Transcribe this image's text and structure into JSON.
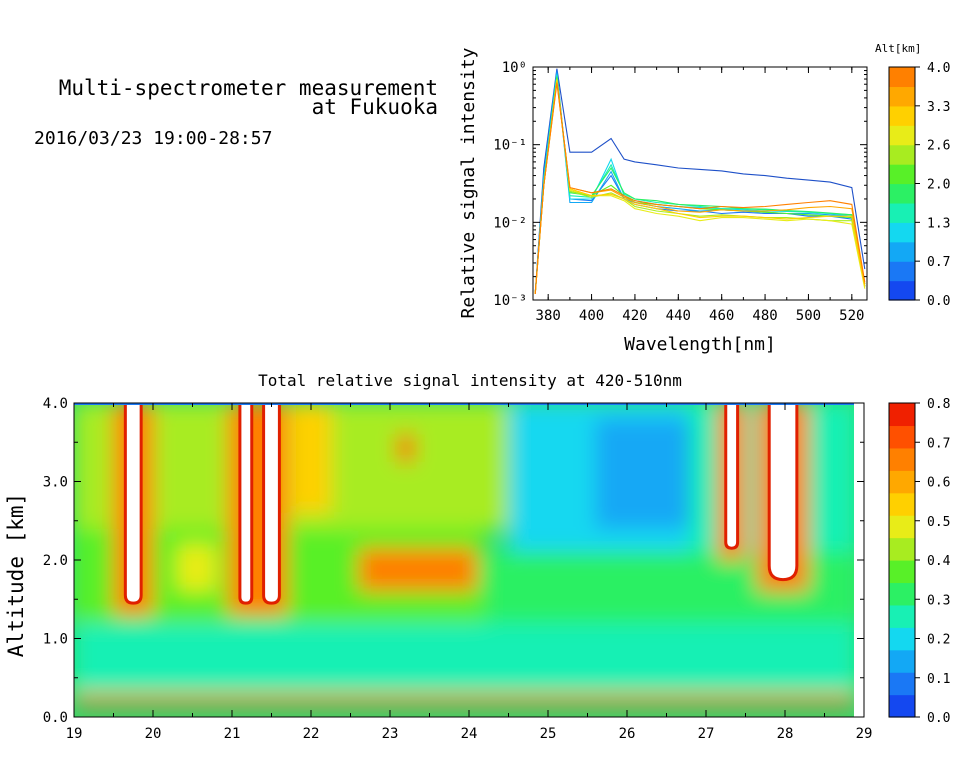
{
  "header": {
    "title_line1": "Multi-spectrometer measurement",
    "title_line2": "at Fukuoka",
    "datetime": "2016/03/23 19:00-28:57"
  },
  "chart_data": [
    {
      "type": "line",
      "xlabel": "Wavelength[nm]",
      "ylabel": "Relative signal intensity",
      "xlim": [
        373,
        527
      ],
      "ylim": [
        0.001,
        1
      ],
      "yscale": "log",
      "x_ticks": [
        "380",
        "400",
        "420",
        "440",
        "460",
        "480",
        "500",
        "520"
      ],
      "y_ticks": [
        "10⁰",
        "10⁻¹",
        "10⁻²",
        "10⁻³"
      ],
      "grid": false,
      "colorbar": {
        "label": "Alt[km]",
        "min": 0.0,
        "max": 4.0,
        "tick_labels": [
          "0.0",
          "0.7",
          "1.3",
          "2.0",
          "2.6",
          "3.3",
          "4.0"
        ],
        "colors": [
          "#1448f0",
          "#1a78f5",
          "#13a8f5",
          "#14d8f0",
          "#18f0b4",
          "#2cf064",
          "#58f028",
          "#a8ec20",
          "#e8ec18",
          "#ffd000",
          "#ffa800",
          "#ff8000"
        ]
      },
      "x": [
        374,
        378,
        384,
        390,
        400,
        409,
        415,
        420,
        430,
        440,
        450,
        460,
        470,
        480,
        490,
        500,
        510,
        520,
        526
      ],
      "series": [
        {
          "color": "#1e50c8",
          "values": [
            0.0012,
            0.05,
            0.95,
            0.08,
            0.08,
            0.12,
            0.065,
            0.06,
            0.055,
            0.05,
            0.048,
            0.046,
            0.042,
            0.04,
            0.037,
            0.035,
            0.033,
            0.028,
            0.0025
          ]
        },
        {
          "color": "#1a78f5",
          "values": [
            0.0012,
            0.04,
            0.9,
            0.02,
            0.019,
            0.04,
            0.02,
            0.017,
            0.015,
            0.014,
            0.014,
            0.013,
            0.0135,
            0.013,
            0.013,
            0.012,
            0.012,
            0.011,
            0.0015
          ]
        },
        {
          "color": "#13a8f5",
          "values": [
            0.0012,
            0.04,
            0.85,
            0.018,
            0.018,
            0.045,
            0.02,
            0.018,
            0.016,
            0.015,
            0.014,
            0.0145,
            0.014,
            0.0135,
            0.013,
            0.013,
            0.0125,
            0.012,
            0.0015
          ]
        },
        {
          "color": "#14d8f0",
          "values": [
            0.0012,
            0.035,
            0.8,
            0.02,
            0.02,
            0.065,
            0.022,
            0.019,
            0.017,
            0.016,
            0.0155,
            0.015,
            0.0145,
            0.014,
            0.0138,
            0.0135,
            0.013,
            0.012,
            0.0015
          ]
        },
        {
          "color": "#18f0b4",
          "values": [
            0.0012,
            0.035,
            0.78,
            0.022,
            0.021,
            0.055,
            0.023,
            0.02,
            0.018,
            0.017,
            0.016,
            0.015,
            0.015,
            0.0145,
            0.014,
            0.0135,
            0.013,
            0.0125,
            0.0016
          ]
        },
        {
          "color": "#2cf064",
          "values": [
            0.0012,
            0.03,
            0.75,
            0.024,
            0.022,
            0.05,
            0.024,
            0.02,
            0.019,
            0.017,
            0.0165,
            0.016,
            0.015,
            0.0148,
            0.0142,
            0.0138,
            0.0132,
            0.0125,
            0.0016
          ]
        },
        {
          "color": "#58f028",
          "values": [
            0.0012,
            0.03,
            0.72,
            0.025,
            0.022,
            0.03,
            0.022,
            0.018,
            0.017,
            0.016,
            0.015,
            0.0145,
            0.014,
            0.0135,
            0.013,
            0.0125,
            0.012,
            0.0115,
            0.0015
          ]
        },
        {
          "color": "#a8ec20",
          "values": [
            0.0012,
            0.03,
            0.7,
            0.025,
            0.021,
            0.024,
            0.02,
            0.016,
            0.014,
            0.013,
            0.012,
            0.0125,
            0.012,
            0.0115,
            0.0115,
            0.011,
            0.0105,
            0.0105,
            0.0015
          ]
        },
        {
          "color": "#e8ec18",
          "values": [
            0.0012,
            0.03,
            0.68,
            0.026,
            0.022,
            0.022,
            0.019,
            0.015,
            0.013,
            0.012,
            0.0105,
            0.0115,
            0.0115,
            0.011,
            0.0105,
            0.011,
            0.0105,
            0.0095,
            0.0014
          ]
        },
        {
          "color": "#ffd000",
          "values": [
            0.0012,
            0.03,
            0.66,
            0.027,
            0.022,
            0.023,
            0.02,
            0.017,
            0.015,
            0.013,
            0.0115,
            0.012,
            0.012,
            0.0115,
            0.011,
            0.0115,
            0.012,
            0.012,
            0.0015
          ]
        },
        {
          "color": "#ffa800",
          "values": [
            0.0012,
            0.03,
            0.64,
            0.028,
            0.024,
            0.026,
            0.021,
            0.018,
            0.016,
            0.014,
            0.0135,
            0.0145,
            0.014,
            0.014,
            0.0145,
            0.0155,
            0.016,
            0.015,
            0.0016
          ]
        },
        {
          "color": "#ff8000",
          "values": [
            0.0012,
            0.03,
            0.62,
            0.028,
            0.024,
            0.027,
            0.022,
            0.019,
            0.017,
            0.016,
            0.015,
            0.016,
            0.0155,
            0.016,
            0.017,
            0.018,
            0.019,
            0.017,
            0.0017
          ]
        }
      ]
    },
    {
      "type": "heatmap",
      "title": "Total relative signal intensity at 420-510nm",
      "xlabel": "",
      "ylabel": "Altitude [km]",
      "xlim": [
        19,
        29
      ],
      "ylim": [
        0.0,
        4.0
      ],
      "x_ticks": [
        "19",
        "20",
        "21",
        "22",
        "23",
        "24",
        "25",
        "26",
        "27",
        "28",
        "29"
      ],
      "y_ticks": [
        "0.0",
        "1.0",
        "2.0",
        "3.0",
        "4.0"
      ],
      "colorbar": {
        "min": 0.0,
        "max": 0.8,
        "tick_labels": [
          "0.0",
          "0.1",
          "0.2",
          "0.3",
          "0.4",
          "0.5",
          "0.6",
          "0.7",
          "0.8"
        ],
        "colors": [
          "#1448f0",
          "#1a78f5",
          "#13a8f5",
          "#14d8f0",
          "#18f0b4",
          "#2cf064",
          "#58f028",
          "#a8ec20",
          "#e8ec18",
          "#ffd000",
          "#ffa800",
          "#ff8000",
          "#ff5000",
          "#f02000"
        ]
      },
      "saturated_regions": [
        {
          "x": [
            19.65,
            19.85
          ],
          "y": [
            1.45,
            4.0
          ]
        },
        {
          "x": [
            21.1,
            21.25
          ],
          "y": [
            1.45,
            4.0
          ]
        },
        {
          "x": [
            21.4,
            21.6
          ],
          "y": [
            1.45,
            4.0
          ]
        },
        {
          "x": [
            27.25,
            27.4
          ],
          "y": [
            2.15,
            4.0
          ]
        },
        {
          "x": [
            27.8,
            28.15
          ],
          "y": [
            1.75,
            4.0
          ]
        }
      ],
      "features": [
        {
          "x": [
            19.0,
            28.9
          ],
          "y": [
            0.12,
            0.2
          ],
          "value": 0.78
        },
        {
          "x": [
            19.0,
            28.9
          ],
          "y": [
            0.25,
            0.32
          ],
          "value": 0.62
        },
        {
          "x": [
            19.0,
            28.9
          ],
          "y": [
            0.32,
            1.2
          ],
          "value": 0.26
        },
        {
          "x": [
            19.0,
            24.2
          ],
          "y": [
            1.2,
            2.4
          ],
          "value": 0.38
        },
        {
          "x": [
            24.2,
            28.9
          ],
          "y": [
            1.2,
            2.1
          ],
          "value": 0.3
        },
        {
          "x": [
            19.0,
            24.5
          ],
          "y": [
            2.4,
            4.0
          ],
          "value": 0.42
        },
        {
          "x": [
            24.5,
            26.8
          ],
          "y": [
            2.1,
            4.0
          ],
          "value": 0.2
        },
        {
          "x": [
            26.8,
            28.9
          ],
          "y": [
            2.1,
            4.0
          ],
          "value": 0.24
        },
        {
          "x": [
            25.6,
            26.8
          ],
          "y": [
            2.4,
            3.8
          ],
          "value": 0.15
        },
        {
          "x": [
            22.6,
            24.1
          ],
          "y": [
            1.6,
            2.15
          ],
          "value": 0.68
        },
        {
          "x": [
            23.1,
            23.3
          ],
          "y": [
            3.25,
            3.6
          ],
          "value": 0.7
        },
        {
          "x": [
            19.5,
            20.0
          ],
          "y": [
            1.3,
            4.0
          ],
          "value": 0.65
        },
        {
          "x": [
            20.95,
            21.7
          ],
          "y": [
            1.3,
            4.0
          ],
          "value": 0.68
        },
        {
          "x": [
            27.15,
            27.5
          ],
          "y": [
            2.0,
            4.0
          ],
          "value": 0.66
        },
        {
          "x": [
            27.65,
            28.3
          ],
          "y": [
            1.6,
            4.0
          ],
          "value": 0.66
        },
        {
          "x": [
            21.75,
            22.25
          ],
          "y": [
            2.6,
            4.0
          ],
          "value": 0.55
        },
        {
          "x": [
            20.3,
            20.8
          ],
          "y": [
            1.6,
            2.2
          ],
          "value": 0.46
        }
      ]
    }
  ]
}
